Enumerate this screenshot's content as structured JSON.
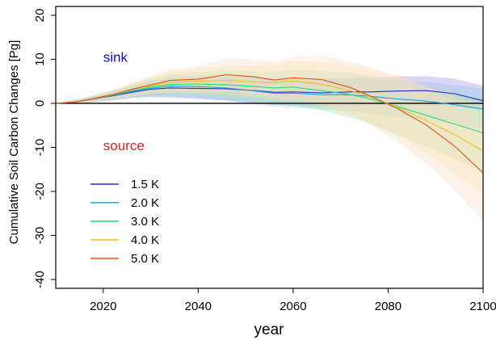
{
  "chart_data": {
    "type": "line",
    "xlabel": "year",
    "ylabel": "Cumulative Soil Carbon Changes [Pg]",
    "xlim": [
      2010,
      2100
    ],
    "ylim": [
      -42,
      22
    ],
    "x_ticks": [
      2020,
      2040,
      2060,
      2080,
      2100
    ],
    "y_ticks": [
      -40,
      -30,
      -20,
      -10,
      0,
      10,
      20
    ],
    "reference_line": 0,
    "annotations": [
      {
        "text": "sink",
        "color": "#1010d0",
        "at": [
          2020,
          10.5
        ]
      },
      {
        "text": "source",
        "color": "#e02020",
        "at": [
          2020,
          -9.5
        ]
      }
    ],
    "legend_position": "bottom-left",
    "series": [
      {
        "name": "1.5 K",
        "color": "#2a2ad8",
        "band_color": "#a090e8",
        "x": [
          2010,
          2014,
          2018,
          2022,
          2026,
          2030,
          2034,
          2040,
          2046,
          2052,
          2056,
          2060,
          2066,
          2072,
          2076,
          2082,
          2088,
          2094,
          2100
        ],
        "y": [
          0,
          0.3,
          1.0,
          1.7,
          2.5,
          3.2,
          3.5,
          3.4,
          3.3,
          2.9,
          2.5,
          2.6,
          2.4,
          2.6,
          2.6,
          2.8,
          2.9,
          2.2,
          0.6
        ],
        "band_lower": [
          0,
          -0.2,
          0.3,
          0.7,
          1.2,
          1.4,
          1.3,
          1.0,
          0.6,
          0.1,
          -0.3,
          -0.5,
          -0.7,
          -0.6,
          -0.5,
          -0.5,
          -0.4,
          -0.8,
          -1.5
        ],
        "band_upper": [
          0,
          0.8,
          1.7,
          2.7,
          3.8,
          5.0,
          5.7,
          5.8,
          6.0,
          5.7,
          5.3,
          5.6,
          5.6,
          5.8,
          5.9,
          6.1,
          6.2,
          5.6,
          4.0
        ]
      },
      {
        "name": "2.0 K",
        "color": "#1aa0e8",
        "band_color": "#90c8f0",
        "x": [
          2010,
          2014,
          2018,
          2022,
          2026,
          2030,
          2034,
          2040,
          2046,
          2052,
          2056,
          2060,
          2066,
          2072,
          2076,
          2082,
          2088,
          2094,
          2100
        ],
        "y": [
          0,
          0.3,
          1.0,
          1.8,
          2.7,
          3.4,
          3.9,
          3.8,
          3.5,
          2.8,
          2.3,
          2.3,
          2.0,
          1.9,
          1.6,
          1.0,
          0.5,
          -0.3,
          -1.3
        ],
        "band_lower": [
          0,
          -0.2,
          0.3,
          0.8,
          1.3,
          1.6,
          1.6,
          1.2,
          0.6,
          -0.2,
          -0.7,
          -0.9,
          -1.4,
          -1.8,
          -2.3,
          -3.1,
          -3.8,
          -4.7,
          -5.8
        ],
        "band_upper": [
          0,
          0.8,
          1.7,
          2.8,
          4.0,
          5.2,
          6.2,
          6.4,
          6.5,
          5.9,
          5.4,
          5.6,
          5.6,
          5.7,
          5.6,
          5.2,
          4.8,
          4.2,
          3.3
        ]
      },
      {
        "name": "3.0 K",
        "color": "#20e070",
        "band_color": "#a8e8b0",
        "x": [
          2010,
          2014,
          2018,
          2022,
          2026,
          2030,
          2034,
          2040,
          2046,
          2052,
          2056,
          2060,
          2066,
          2072,
          2076,
          2082,
          2088,
          2094,
          2100
        ],
        "y": [
          0,
          0.3,
          1.1,
          1.9,
          2.9,
          3.7,
          4.3,
          4.4,
          4.2,
          3.8,
          3.5,
          3.7,
          2.9,
          2.0,
          1.1,
          -0.7,
          -2.7,
          -4.7,
          -6.7
        ],
        "band_lower": [
          0,
          -0.2,
          0.4,
          0.9,
          1.5,
          1.9,
          2.0,
          1.7,
          1.1,
          0.4,
          -0.1,
          -0.4,
          -1.6,
          -3.2,
          -4.6,
          -7.1,
          -9.8,
          -12.6,
          -15.4
        ],
        "band_upper": [
          0,
          0.8,
          1.8,
          2.9,
          4.3,
          5.5,
          6.6,
          7.1,
          7.4,
          7.3,
          7.1,
          7.7,
          7.4,
          6.9,
          6.3,
          5.0,
          3.7,
          2.4,
          1.2
        ]
      },
      {
        "name": "4.0 K",
        "color": "#f0c020",
        "band_color": "#f8e4a8",
        "x": [
          2010,
          2014,
          2018,
          2022,
          2026,
          2030,
          2034,
          2040,
          2046,
          2052,
          2056,
          2060,
          2066,
          2072,
          2076,
          2082,
          2088,
          2094,
          2100
        ],
        "y": [
          0,
          0.3,
          1.1,
          2.0,
          3.1,
          4.0,
          4.8,
          5.0,
          5.2,
          4.9,
          4.7,
          5.1,
          4.3,
          2.9,
          1.6,
          -0.9,
          -3.9,
          -7.1,
          -10.8
        ],
        "band_lower": [
          0,
          -0.2,
          0.4,
          1.0,
          1.6,
          2.1,
          2.4,
          2.2,
          1.9,
          1.2,
          0.7,
          0.5,
          -0.7,
          -2.6,
          -4.3,
          -7.4,
          -11.4,
          -15.8,
          -20.8
        ],
        "band_upper": [
          0,
          0.8,
          1.8,
          3.0,
          4.6,
          5.9,
          7.2,
          7.8,
          8.5,
          8.6,
          8.7,
          9.6,
          9.4,
          8.6,
          7.7,
          5.9,
          3.7,
          1.5,
          -0.5
        ]
      },
      {
        "name": "5.0 K",
        "color": "#e05010",
        "band_color": "#fbdcc8",
        "x": [
          2010,
          2014,
          2018,
          2022,
          2026,
          2030,
          2034,
          2040,
          2046,
          2052,
          2056,
          2060,
          2066,
          2072,
          2076,
          2082,
          2088,
          2094,
          2100
        ],
        "y": [
          0,
          0.3,
          1.1,
          2.0,
          3.2,
          4.2,
          5.2,
          5.5,
          6.5,
          6.0,
          5.3,
          5.8,
          5.4,
          3.6,
          1.8,
          -1.2,
          -4.9,
          -9.7,
          -15.8
        ],
        "band_lower": [
          0,
          -0.2,
          0.4,
          1.0,
          1.7,
          2.2,
          2.7,
          2.5,
          2.8,
          2.0,
          1.2,
          1.0,
          0.0,
          -2.3,
          -4.7,
          -8.7,
          -13.6,
          -19.7,
          -26.8
        ],
        "band_upper": [
          0,
          0.8,
          1.8,
          3.0,
          4.7,
          6.2,
          7.7,
          8.5,
          10.2,
          10.0,
          9.4,
          10.6,
          10.8,
          9.5,
          8.3,
          6.3,
          3.8,
          0.3,
          -4.8
        ]
      }
    ]
  }
}
